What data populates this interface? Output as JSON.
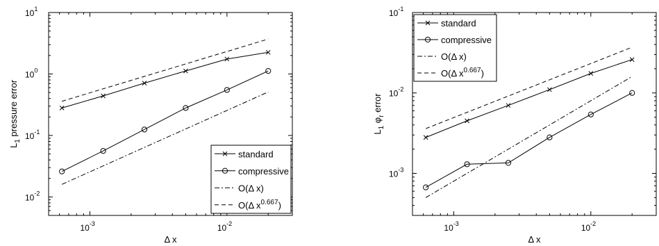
{
  "chart_data": [
    {
      "type": "line",
      "log_x": true,
      "log_y": true,
      "xlim": [
        0.0005,
        0.03
      ],
      "ylim": [
        0.005,
        10
      ],
      "xlabel": "Δ x",
      "ylabel": {
        "main": "L",
        "sub": "1",
        "rest": " pressure error"
      },
      "x_ticks": [
        {
          "base": "10",
          "exp": "-3",
          "value": 0.001
        },
        {
          "base": "10",
          "exp": "-2",
          "value": 0.01
        }
      ],
      "y_ticks": [
        {
          "base": "10",
          "exp": "-2",
          "value": 0.01
        },
        {
          "base": "10",
          "exp": "-1",
          "value": 0.1
        },
        {
          "base": "10",
          "exp": "0",
          "value": 1
        },
        {
          "base": "10",
          "exp": "1",
          "value": 10
        }
      ],
      "grid": false,
      "legend_placement": "bottom-right",
      "series": [
        {
          "name": "standard",
          "marker": "x",
          "dash": "solid",
          "x": [
            0.000625,
            0.00125,
            0.0025,
            0.005,
            0.01,
            0.02
          ],
          "values": [
            0.28,
            0.44,
            0.71,
            1.12,
            1.75,
            2.25
          ]
        },
        {
          "name": "compressive",
          "marker": "o",
          "dash": "solid",
          "x": [
            0.000625,
            0.00125,
            0.0025,
            0.005,
            0.01,
            0.02
          ],
          "values": [
            0.026,
            0.056,
            0.125,
            0.28,
            0.55,
            1.12
          ]
        },
        {
          "name": "O(Δ x)",
          "marker": "none",
          "dash": "dashdot",
          "x": [
            0.000625,
            0.02
          ],
          "values": [
            0.016,
            0.51
          ]
        },
        {
          "name": "O(Δ x^0.667)",
          "marker": "none",
          "dash": "dashed",
          "x": [
            0.000625,
            0.02
          ],
          "values": [
            0.36,
            3.7
          ]
        }
      ]
    },
    {
      "type": "line",
      "log_x": true,
      "log_y": true,
      "xlim": [
        0.0005,
        0.03
      ],
      "ylim": [
        0.0003,
        0.1
      ],
      "xlabel": "Δ x",
      "ylabel": {
        "main": "L",
        "sub": "1",
        "phi": " φ",
        "phisub": "r",
        "rest": " error"
      },
      "x_ticks": [
        {
          "base": "10",
          "exp": "-3",
          "value": 0.001
        },
        {
          "base": "10",
          "exp": "-2",
          "value": 0.01
        }
      ],
      "y_ticks": [
        {
          "base": "10",
          "exp": "-3",
          "value": 0.001
        },
        {
          "base": "10",
          "exp": "-2",
          "value": 0.01
        },
        {
          "base": "10",
          "exp": "-1",
          "value": 0.1
        }
      ],
      "grid": false,
      "legend_placement": "top-left",
      "series": [
        {
          "name": "standard",
          "marker": "x",
          "dash": "solid",
          "x": [
            0.000625,
            0.00125,
            0.0025,
            0.005,
            0.01,
            0.02
          ],
          "values": [
            0.0028,
            0.0045,
            0.007,
            0.011,
            0.0175,
            0.026
          ]
        },
        {
          "name": "compressive",
          "marker": "o",
          "dash": "solid",
          "x": [
            0.000625,
            0.00125,
            0.0025,
            0.005,
            0.01,
            0.02
          ],
          "values": [
            0.00067,
            0.0013,
            0.00135,
            0.0028,
            0.0054,
            0.01
          ]
        },
        {
          "name": "O(Δ x)",
          "marker": "none",
          "dash": "dashdot",
          "x": [
            0.000625,
            0.02
          ],
          "values": [
            0.0005,
            0.016
          ]
        },
        {
          "name": "O(Δ x^0.667)",
          "marker": "none",
          "dash": "dashed",
          "x": [
            0.000625,
            0.02
          ],
          "values": [
            0.0036,
            0.037
          ]
        }
      ]
    }
  ]
}
